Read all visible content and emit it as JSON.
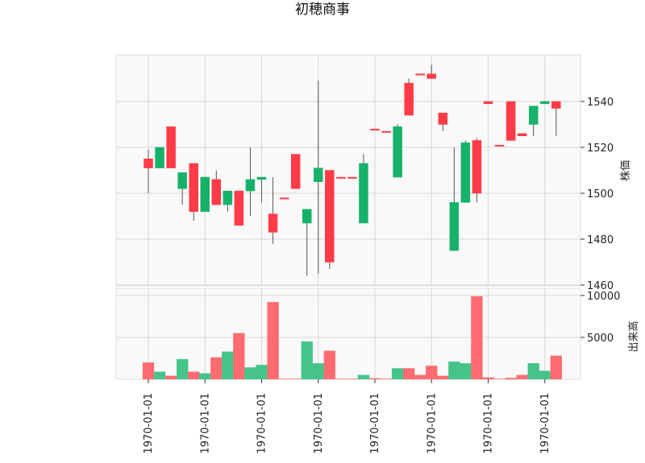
{
  "chart_data": {
    "type": "candlestick",
    "title": "初穂商事",
    "ylabel_price": "株価",
    "ylabel_volume": "出来高",
    "x_tick_labels": [
      "1970-01-01",
      "1970-01-01",
      "1970-01-01",
      "1970-01-01",
      "1970-01-01",
      "1970-01-01",
      "1970-01-01",
      "1970-01-01"
    ],
    "price_ylim": [
      1460,
      1557
    ],
    "price_yticks": [
      1460,
      1480,
      1500,
      1520,
      1540
    ],
    "volume_ylim": [
      0,
      10000
    ],
    "volume_yticks": [
      5000,
      10000
    ],
    "grid": true,
    "colors": {
      "up": "#ff3b47",
      "down": "#17b26a",
      "up_volume": "#ff6b70",
      "down_volume": "#45c48a",
      "wick": "#555555",
      "panel_bg": "#f9f9f9",
      "grid": "#d6d6d6"
    },
    "candles": [
      {
        "open": 1511,
        "high": 1519,
        "low": 1500,
        "close": 1515,
        "volume": 2000
      },
      {
        "open": 1520,
        "high": 1520,
        "low": 1511,
        "close": 1511,
        "volume": 900
      },
      {
        "open": 1511,
        "high": 1529,
        "low": 1511,
        "close": 1529,
        "volume": 400
      },
      {
        "open": 1509,
        "high": 1509,
        "low": 1495,
        "close": 1502,
        "volume": 2400
      },
      {
        "open": 1492,
        "high": 1513,
        "low": 1488,
        "close": 1513,
        "volume": 900
      },
      {
        "open": 1507,
        "high": 1507,
        "low": 1492,
        "close": 1492,
        "volume": 700
      },
      {
        "open": 1495,
        "high": 1510,
        "low": 1495,
        "close": 1506,
        "volume": 2600
      },
      {
        "open": 1501,
        "high": 1501,
        "low": 1492,
        "close": 1495,
        "volume": 3300
      },
      {
        "open": 1486,
        "high": 1501,
        "low": 1486,
        "close": 1501,
        "volume": 5500
      },
      {
        "open": 1506,
        "high": 1520,
        "low": 1490,
        "close": 1501,
        "volume": 1400
      },
      {
        "open": 1507,
        "high": 1507,
        "low": 1496,
        "close": 1506,
        "volume": 1700
      },
      {
        "open": 1483,
        "high": 1507,
        "low": 1478,
        "close": 1491,
        "volume": 9200
      },
      {
        "open": 1498,
        "high": 1498,
        "low": 1498,
        "close": 1498,
        "volume": 50
      },
      {
        "open": 1502,
        "high": 1517,
        "low": 1502,
        "close": 1517,
        "volume": 50
      },
      {
        "open": 1493,
        "high": 1493,
        "low": 1464,
        "close": 1487,
        "volume": 4500
      },
      {
        "open": 1511,
        "high": 1549,
        "low": 1465,
        "close": 1505,
        "volume": 1900
      },
      {
        "open": 1470,
        "high": 1510,
        "low": 1467,
        "close": 1510,
        "volume": 3400
      },
      {
        "open": 1507,
        "high": 1507,
        "low": 1507,
        "close": 1507,
        "volume": 50
      },
      {
        "open": 1507,
        "high": 1507,
        "low": 1507,
        "close": 1507,
        "volume": 50
      },
      {
        "open": 1513,
        "high": 1517,
        "low": 1487,
        "close": 1487,
        "volume": 500
      },
      {
        "open": 1528,
        "high": 1528,
        "low": 1528,
        "close": 1528,
        "volume": 100
      },
      {
        "open": 1527,
        "high": 1527,
        "low": 1527,
        "close": 1527,
        "volume": 50
      },
      {
        "open": 1529,
        "high": 1530,
        "low": 1507,
        "close": 1507,
        "volume": 1300
      },
      {
        "open": 1534,
        "high": 1550,
        "low": 1534,
        "close": 1548,
        "volume": 1300
      },
      {
        "open": 1552,
        "high": 1552,
        "low": 1552,
        "close": 1552,
        "volume": 500
      },
      {
        "open": 1550,
        "high": 1556,
        "low": 1550,
        "close": 1552,
        "volume": 1600
      },
      {
        "open": 1530,
        "high": 1535,
        "low": 1527,
        "close": 1535,
        "volume": 400
      },
      {
        "open": 1496,
        "high": 1520,
        "low": 1475,
        "close": 1475,
        "volume": 2100
      },
      {
        "open": 1522,
        "high": 1523,
        "low": 1496,
        "close": 1496,
        "volume": 1900
      },
      {
        "open": 1500,
        "high": 1524,
        "low": 1496,
        "close": 1523,
        "volume": 9900
      },
      {
        "open": 1539,
        "high": 1540,
        "low": 1539,
        "close": 1540,
        "volume": 200
      },
      {
        "open": 1521,
        "high": 1521,
        "low": 1521,
        "close": 1521,
        "volume": 50
      },
      {
        "open": 1523,
        "high": 1540,
        "low": 1523,
        "close": 1540,
        "volume": 150
      },
      {
        "open": 1525,
        "high": 1526,
        "low": 1525,
        "close": 1526,
        "volume": 500
      },
      {
        "open": 1538,
        "high": 1538,
        "low": 1525,
        "close": 1530,
        "volume": 1900
      },
      {
        "open": 1540,
        "high": 1540,
        "low": 1539,
        "close": 1539,
        "volume": 1000
      },
      {
        "open": 1537,
        "high": 1540,
        "low": 1525,
        "close": 1540,
        "volume": 2800
      }
    ]
  }
}
